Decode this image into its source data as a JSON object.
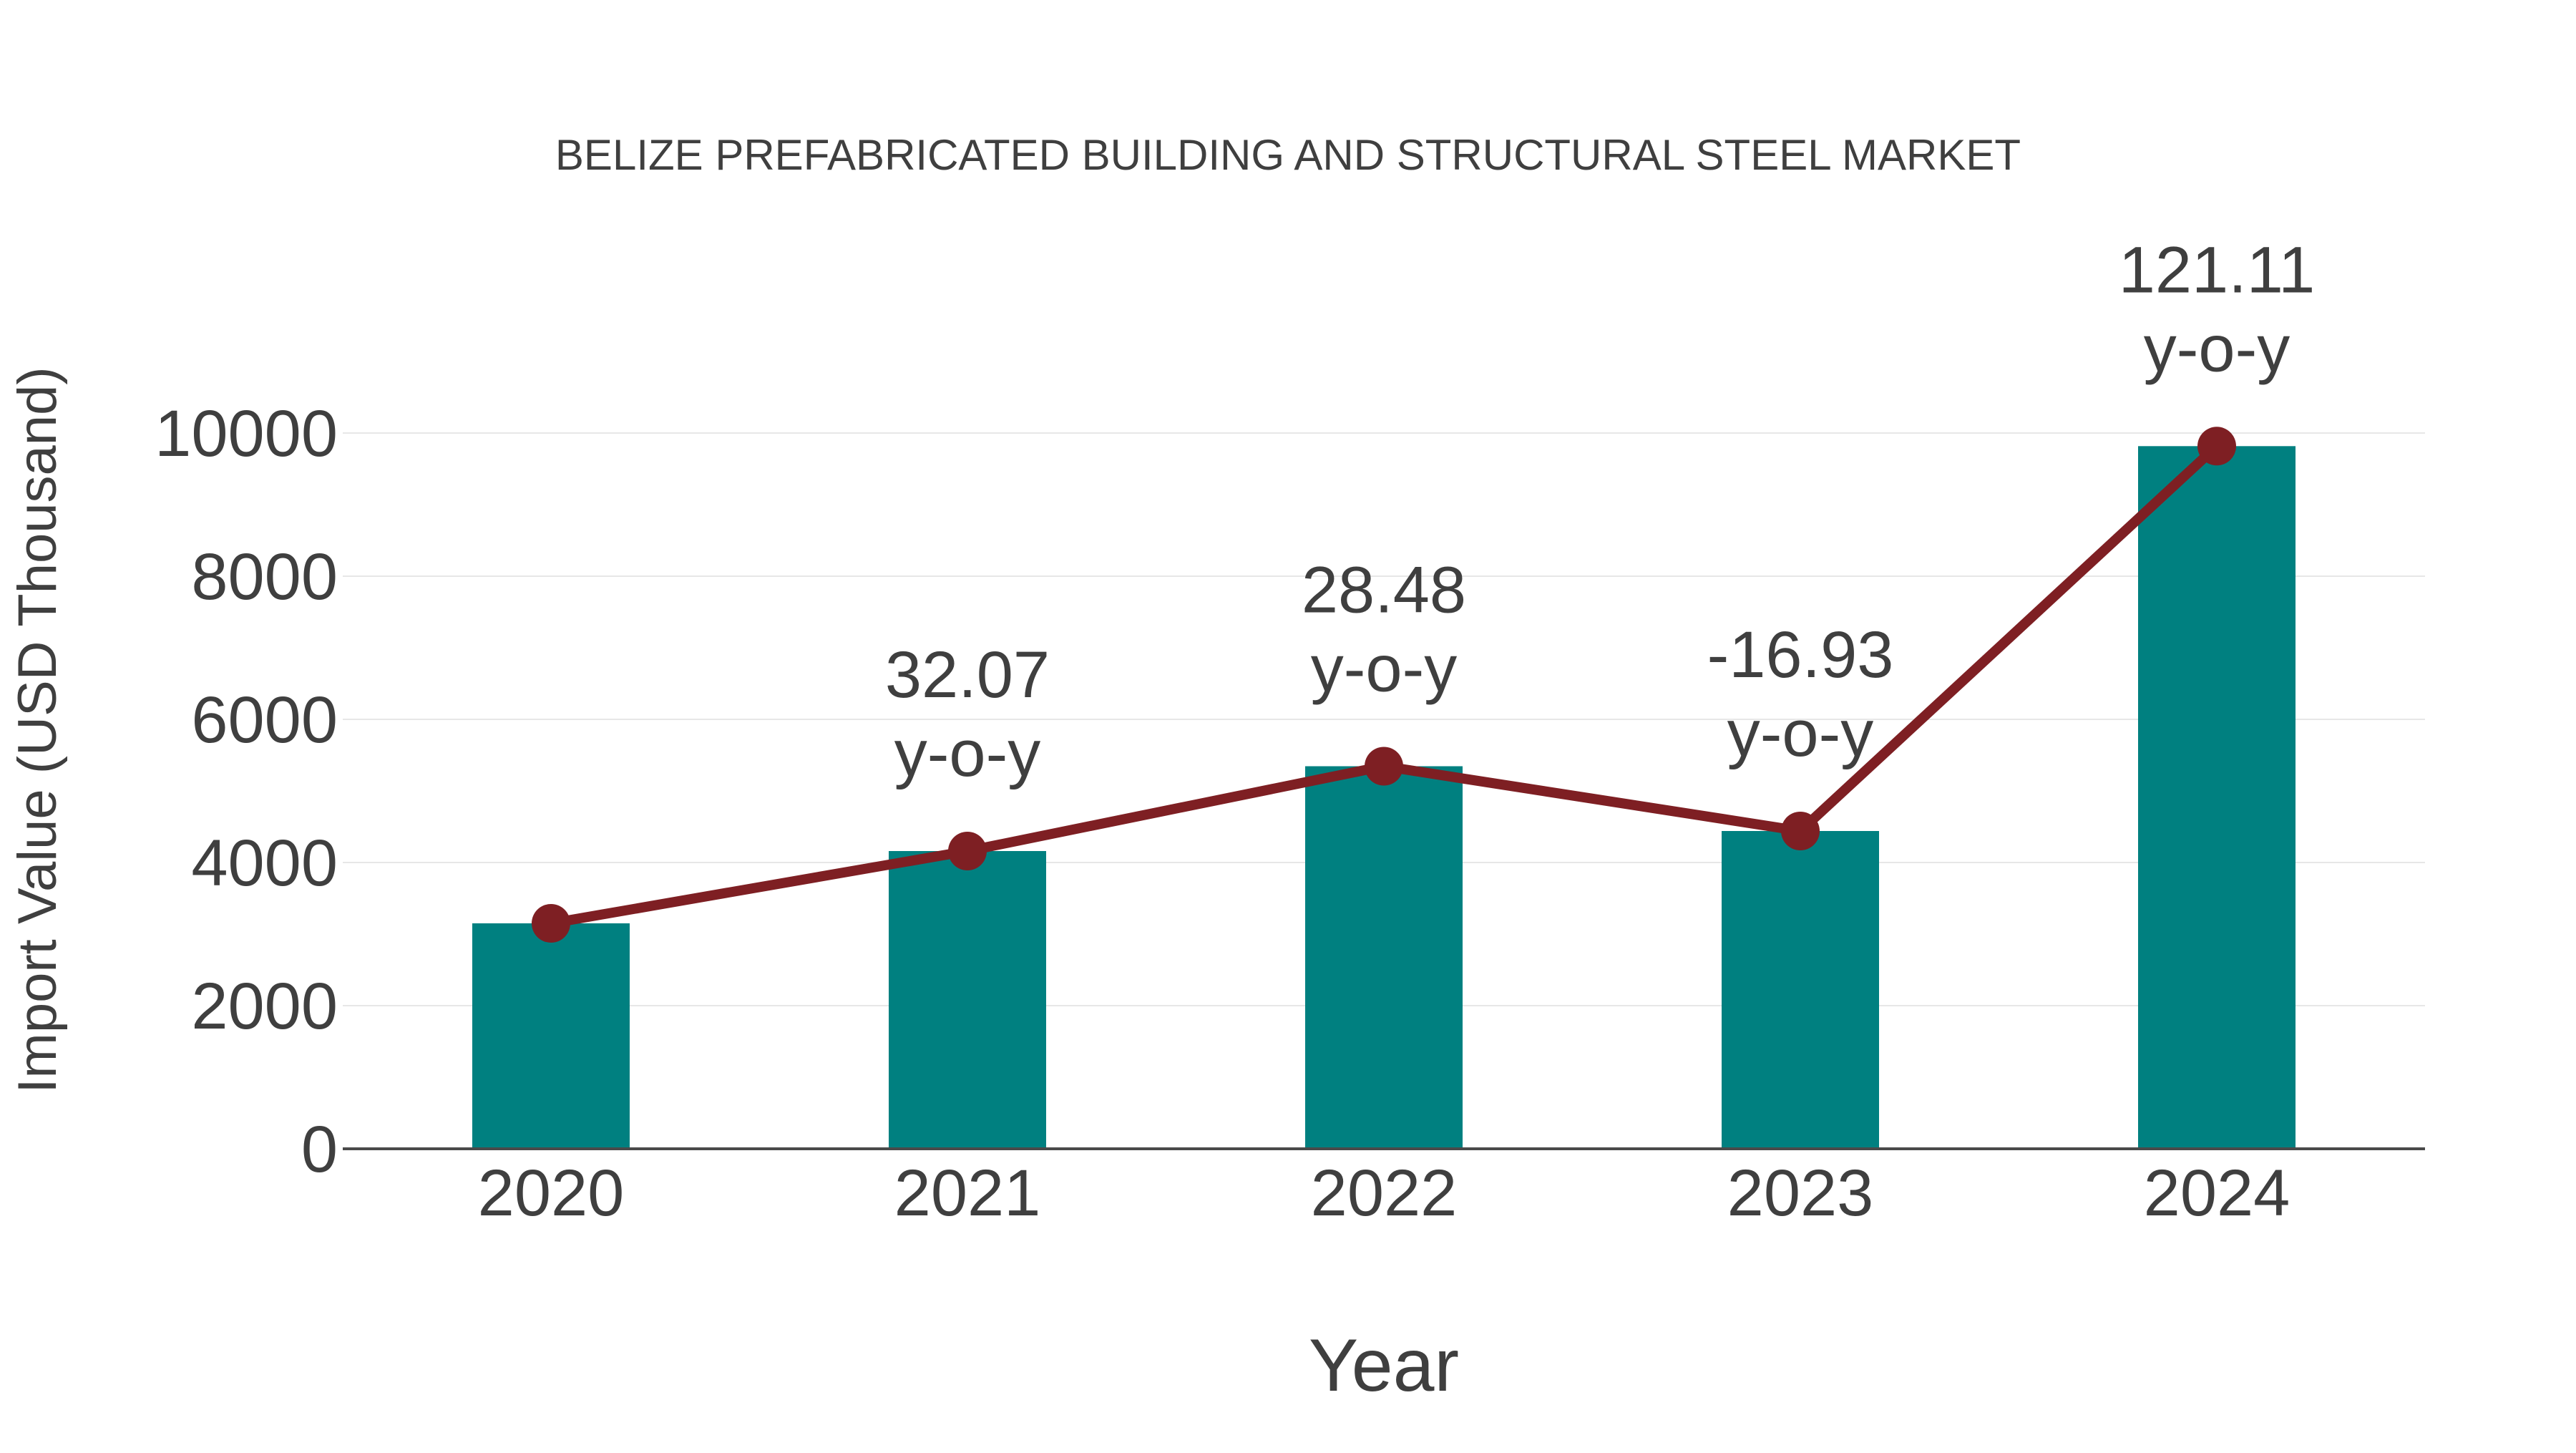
{
  "chart_data": {
    "type": "bar",
    "title": "BELIZE PREFABRICATED BUILDING AND STRUCTURAL STEEL MARKET",
    "xlabel": "Year",
    "ylabel": "Import Value (USD Thousand)",
    "categories": [
      "2020",
      "2021",
      "2022",
      "2023",
      "2024"
    ],
    "series": [
      {
        "name": "Import Value (USD Thousand)",
        "type": "bar",
        "values": [
          3150,
          4160,
          5345,
          4440,
          9817
        ]
      },
      {
        "name": "y-o-y growth",
        "type": "line",
        "values": [
          null,
          32.07,
          28.48,
          -16.93,
          121.11
        ]
      }
    ],
    "annotations": [
      {
        "category": "2021",
        "line1": "32.07",
        "line2": "y-o-y"
      },
      {
        "category": "2022",
        "line1": "28.48",
        "line2": "y-o-y"
      },
      {
        "category": "2023",
        "line1": "-16.93",
        "line2": "y-o-y"
      },
      {
        "category": "2024",
        "line1": "121.11",
        "line2": "y-o-y"
      }
    ],
    "yticks": [
      0,
      2000,
      4000,
      6000,
      8000,
      10000
    ],
    "ylim": [
      0,
      10500
    ],
    "grid": true,
    "legend_position": "none",
    "colors": {
      "bar": "#008080",
      "line": "#7e1f23",
      "marker": "#7e1f23",
      "text": "#3f3f3f",
      "gridline": "#e7e7e7",
      "axis": "#4a4a4a",
      "background": "#ffffff"
    }
  }
}
